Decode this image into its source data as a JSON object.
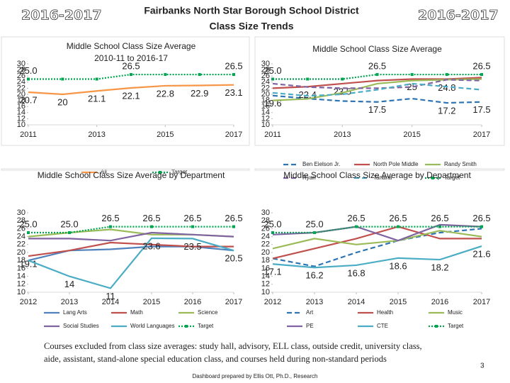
{
  "header": {
    "year_left": "2016-2017",
    "year_right": "2016-2017",
    "title_line1": "Fairbanks North Star Borough School District",
    "title_line2": "Class Size Trends"
  },
  "chart_data": [
    {
      "type": "line",
      "title": "Middle School Class Size Average",
      "subtitle": "2010-11 to 2016-17",
      "x": [
        2011,
        2012,
        2013,
        2014,
        2015,
        2016,
        2017
      ],
      "xlim": [
        2011,
        2017
      ],
      "xticks": [
        2011,
        2013,
        2015,
        2017
      ],
      "ylim": [
        10,
        30
      ],
      "yticks": [
        10,
        12,
        14,
        16,
        18,
        20,
        22,
        24,
        26,
        28,
        30
      ],
      "series": [
        {
          "name": "All",
          "color": "#f79646",
          "style": "solid",
          "values": [
            20.7,
            20,
            21.1,
            22.1,
            22.8,
            22.9,
            23.1
          ],
          "value_labels": [
            "20.7",
            "20",
            "21.1",
            "22.1",
            "22.8",
            "22.9",
            "23.1"
          ]
        },
        {
          "name": "Target",
          "color": "#00a550",
          "style": "dotted",
          "marker": "square",
          "values": [
            25,
            25,
            25,
            26.5,
            26.5,
            26.5,
            26.5
          ],
          "value_labels": [
            "25.0",
            null,
            null,
            "26.5",
            null,
            null,
            "26.5"
          ]
        }
      ]
    },
    {
      "type": "line",
      "title": "Middle School Class Size Average",
      "x": [
        2011,
        2012,
        2013,
        2014,
        2015,
        2016,
        2017
      ],
      "xlim": [
        2011,
        2017
      ],
      "xticks": [
        2011,
        2013,
        2015,
        2017
      ],
      "ylim": [
        10,
        30
      ],
      "yticks": [
        10,
        12,
        14,
        16,
        18,
        20,
        22,
        24,
        26,
        28,
        30
      ],
      "series": [
        {
          "name": "Ben Eielson Jr.",
          "color": "#2e75b6",
          "style": "dashed",
          "values": [
            19.6,
            18.6,
            17.8,
            17.5,
            18.6,
            17.2,
            17.5
          ],
          "value_labels": [
            "19.6",
            null,
            null,
            "17.5",
            null,
            "17.2",
            "17.5"
          ]
        },
        {
          "name": "North Pole Middle",
          "color": "#c0504d",
          "style": "solid",
          "values": [
            22,
            22.5,
            23.5,
            24.5,
            25,
            25,
            25.5
          ],
          "value_labels": [
            null,
            null,
            "23.5",
            null,
            "25",
            null,
            null
          ]
        },
        {
          "name": "Randy Smith",
          "color": "#9bbb59",
          "style": "solid",
          "values": [
            18,
            18.5,
            20.5,
            23.5,
            24.5,
            24.8,
            25
          ],
          "value_labels": [
            null,
            null,
            null,
            null,
            null,
            null,
            null
          ]
        },
        {
          "name": "Ryan",
          "color": "#8064a2",
          "style": "dashed",
          "values": [
            23.5,
            22.4,
            22,
            22,
            22.4,
            24.8,
            24.5
          ],
          "value_labels": [
            null,
            "22.4",
            null,
            null,
            null,
            "24.8",
            null
          ]
        },
        {
          "name": "Tanana",
          "color": "#4bacc6",
          "style": "dashed",
          "values": [
            20.5,
            19.5,
            20,
            21.5,
            23.5,
            22.5,
            21.5
          ],
          "value_labels": [
            null,
            null,
            null,
            null,
            null,
            null,
            null
          ]
        },
        {
          "name": "Target",
          "color": "#00a550",
          "style": "dotted",
          "marker": "square",
          "values": [
            25,
            25,
            25,
            26.5,
            26.5,
            26.5,
            26.5
          ],
          "value_labels": [
            "25.0",
            null,
            null,
            "26.5",
            null,
            null,
            "26.5"
          ]
        }
      ]
    },
    {
      "type": "line",
      "title": "Middle School Class Size Average by Department",
      "x": [
        2012,
        2013,
        2014,
        2015,
        2016,
        2017
      ],
      "xlim": [
        2012,
        2017
      ],
      "xticks": [
        2012,
        2013,
        2014,
        2015,
        2016,
        2017
      ],
      "ylim": [
        10,
        30
      ],
      "yticks": [
        10,
        12,
        14,
        16,
        18,
        20,
        22,
        24,
        26,
        28,
        30
      ],
      "series": [
        {
          "name": "Lang Arts",
          "color": "#4f81bd",
          "style": "solid",
          "values": [
            18,
            20.5,
            20.8,
            21.5,
            21.5,
            20.5
          ],
          "value_labels": [
            null,
            null,
            null,
            null,
            null,
            null
          ]
        },
        {
          "name": "Math",
          "color": "#c0504d",
          "style": "solid",
          "values": [
            19.1,
            20.5,
            22.5,
            22,
            21.5,
            21.5
          ],
          "value_labels": [
            "19.1",
            null,
            null,
            null,
            null,
            null
          ]
        },
        {
          "name": "Science",
          "color": "#9bbb59",
          "style": "solid",
          "values": [
            24,
            25,
            25.8,
            24.5,
            24.5,
            24
          ],
          "value_labels": [
            null,
            null,
            null,
            null,
            null,
            null
          ]
        },
        {
          "name": "Social Studies",
          "color": "#8064a2",
          "style": "solid",
          "values": [
            23.5,
            23.5,
            23,
            25,
            24.5,
            24
          ],
          "value_labels": [
            null,
            null,
            null,
            null,
            null,
            null
          ]
        },
        {
          "name": "World Languages",
          "color": "#4bacc6",
          "style": "solid",
          "values": [
            18,
            14,
            11,
            23.6,
            23.5,
            20.5
          ],
          "value_labels": [
            null,
            "14",
            "11",
            "23.6",
            "23.5",
            "20.5"
          ]
        },
        {
          "name": "Target",
          "color": "#00a550",
          "style": "dotted",
          "marker": "square",
          "values": [
            25,
            25,
            26.5,
            26.5,
            26.5,
            26.5
          ],
          "value_labels": [
            "25.0",
            "25.0",
            "26.5",
            "26.5",
            "26.5",
            "26.5"
          ]
        }
      ]
    },
    {
      "type": "line",
      "title": "Middle School Class Size Average by Department",
      "x": [
        2012,
        2013,
        2014,
        2015,
        2016,
        2017
      ],
      "xlim": [
        2012,
        2017
      ],
      "xticks": [
        2012,
        2013,
        2014,
        2015,
        2016,
        2017
      ],
      "ylim": [
        10,
        30
      ],
      "yticks": [
        10,
        12,
        14,
        16,
        18,
        20,
        22,
        24,
        26,
        28,
        30
      ],
      "series": [
        {
          "name": "Art",
          "color": "#2e75b6",
          "style": "dashed",
          "values": [
            18.5,
            16.5,
            20,
            23,
            25,
            26
          ],
          "value_labels": [
            null,
            null,
            null,
            null,
            null,
            null
          ]
        },
        {
          "name": "Health",
          "color": "#c0504d",
          "style": "solid",
          "values": [
            18.5,
            21,
            23.5,
            26.5,
            23.5,
            23.5
          ],
          "value_labels": [
            null,
            null,
            null,
            null,
            null,
            null
          ]
        },
        {
          "name": "Music",
          "color": "#9bbb59",
          "style": "solid",
          "values": [
            21,
            23.5,
            22,
            23,
            25.5,
            24
          ],
          "value_labels": [
            null,
            null,
            null,
            null,
            null,
            null
          ]
        },
        {
          "name": "PE",
          "color": "#8064a2",
          "style": "solid",
          "values": [
            24.5,
            25,
            26.5,
            23,
            27,
            26.5
          ],
          "value_labels": [
            null,
            null,
            null,
            null,
            null,
            null
          ]
        },
        {
          "name": "CTE",
          "color": "#4bacc6",
          "style": "solid",
          "values": [
            17.1,
            16.2,
            16.8,
            18.6,
            18.2,
            21.6
          ],
          "value_labels": [
            "17.1",
            "16.2",
            "16.8",
            "18.6",
            "18.2",
            "21.6"
          ]
        },
        {
          "name": "Target",
          "color": "#00a550",
          "style": "dotted",
          "marker": "square",
          "values": [
            25,
            25,
            26.5,
            26.5,
            26.5,
            26.5
          ],
          "value_labels": [
            "25.0",
            "25.0",
            "26.5",
            "26.5",
            "26.5",
            "26.5"
          ]
        }
      ]
    }
  ],
  "footnote": [
    "Courses excluded from class size averages: study hall, advisory, ELL class, outside credit, university class,",
    "aide, assistant, stand-alone special education class, and courses held during non-standard periods"
  ],
  "credit": "Dashboard prepared by Ellis Ott, Ph.D., Research",
  "page_number": 3
}
